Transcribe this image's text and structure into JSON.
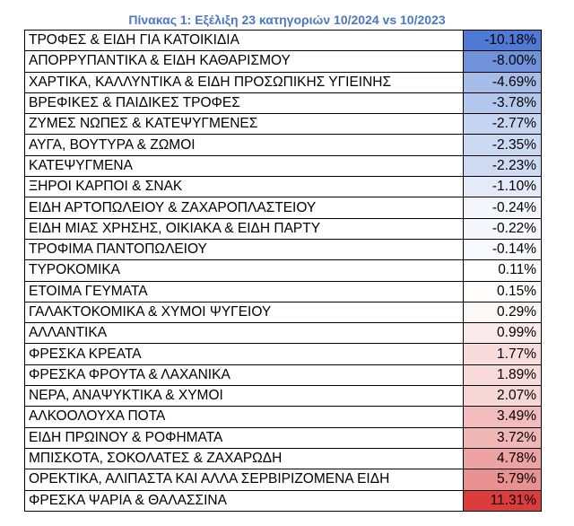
{
  "title": "Πίνακας 1: Εξέλιξη 23 κατηγοριών 10/2024 vs 10/2023",
  "rows": [
    {
      "category": "ΤΡΟΦΕΣ & ΕΙΔΗ ΓΙΑ ΚΑΤΟΙΚΙΔΙΑ",
      "value": "-10.18%",
      "color": "#4e79d4"
    },
    {
      "category": "ΑΠΟΡΡΥΠΑΝΤΙΚΑ & ΕΙΔΗ ΚΑΘΑΡΙΣΜΟΥ",
      "value": "-8.00%",
      "color": "#6f92db"
    },
    {
      "category": "ΧΑΡΤΙΚΑ, ΚΑΛΛΥΝΤΙΚΑ & ΕΙΔΗ ΠΡΟΣΩΠΙΚΗΣ ΥΓΙΕΙΝΗΣ",
      "value": "-4.69%",
      "color": "#a6bce9"
    },
    {
      "category": "ΒΡΕΦΙΚΕΣ & ΠΑΙΔΙΚΕΣ ΤΡΟΦΕΣ",
      "value": "-3.78%",
      "color": "#b4c7ec"
    },
    {
      "category": "ΖΥΜΕΣ ΝΩΠΕΣ & ΚΑΤΕΨΥΓΜΕΝΕΣ",
      "value": "-2.77%",
      "color": "#c5d4f0"
    },
    {
      "category": "ΑΥΓΑ, ΒΟΥΤΥΡΑ & ΖΩΜΟΙ",
      "value": "-2.35%",
      "color": "#ccd9f2"
    },
    {
      "category": "ΚΑΤΕΨΥΓΜΕΝΑ",
      "value": "-2.23%",
      "color": "#cedbf3"
    },
    {
      "category": "ΞΗΡΟΙ ΚΑΡΠΟΙ & ΣΝΑΚ",
      "value": "-1.10%",
      "color": "#e4eaf8"
    },
    {
      "category": "ΕΙΔΗ ΑΡΤΟΠΩΛΕΙΟΥ & ΖΑΧΑΡΟΠΛΑΣΤΕΙΟΥ",
      "value": "-0.24%",
      "color": "#f4f6fc"
    },
    {
      "category": "ΕΙΔΗ ΜΙΑΣ ΧΡΗΣΗΣ, ΟΙΚΙΑΚΑ & ΕΙΔΗ ΠΑΡΤΥ",
      "value": "-0.22%",
      "color": "#f5f7fc"
    },
    {
      "category": "ΤΡΟΦΙΜΑ ΠΑΝΤΟΠΩΛΕΙΟΥ",
      "value": "-0.14%",
      "color": "#f7f9fd"
    },
    {
      "category": "ΤΥΡΟΚΟΜΙΚΑ",
      "value": "0.11%",
      "color": "#ffffff"
    },
    {
      "category": "ΕΤΟΙΜΑ ΓΕΥΜΑΤΑ",
      "value": "0.15%",
      "color": "#fffcfc"
    },
    {
      "category": "ΓΑΛΑΚΤΟΚΟΜΙΚΑ & ΧΥΜΟΙ ΨΥΓΕΙΟΥ",
      "value": "0.29%",
      "color": "#fdf8f8"
    },
    {
      "category": "ΑΛΛΑΝΤΙΚΑ",
      "value": "0.99%",
      "color": "#fbeaea"
    },
    {
      "category": "ΦΡΕΣΚΑ ΚΡΕΑΤΑ",
      "value": "1.77%",
      "color": "#f8dcdc"
    },
    {
      "category": "ΦΡΕΣΚΑ ΦΡΟΥΤΑ & ΛΑΧΑΝΙΚΑ",
      "value": "1.89%",
      "color": "#f8dada"
    },
    {
      "category": "ΝΕΡΑ, ΑΝΑΨΥΚΤΙΚΑ & ΧΥΜΟΙ",
      "value": "2.07%",
      "color": "#f7d6d6"
    },
    {
      "category": "ΑΛΚΟΟΛΟΥΧΑ ΠΟΤΑ",
      "value": "3.49%",
      "color": "#f2bcbc"
    },
    {
      "category": "ΕΙΔΗ ΠΡΩΙΝΟΥ & ΡΟΦΗΜΑΤΑ",
      "value": "3.72%",
      "color": "#f1b7b7"
    },
    {
      "category": "ΜΠΙΣΚΟΤΑ, ΣΟΚΟΛΑΤΕΣ & ΖΑΧΑΡΩΔΗ",
      "value": "4.78%",
      "color": "#eda3a3"
    },
    {
      "category": "ΟΡΕΚΤΙΚΑ, ΑΛΙΠΑΣΤΑ ΚΑΙ ΑΛΛΑ ΣΕΡΒΙΡΙΖΟΜΕΝΑ ΕΙΔΗ",
      "value": "5.79%",
      "color": "#e99090"
    },
    {
      "category": "ΦΡΕΣΚΑ ΨΑΡΙΑ & ΘΑΛΑΣΣΙΝΑ",
      "value": "11.31%",
      "color": "#de3c3c"
    }
  ]
}
